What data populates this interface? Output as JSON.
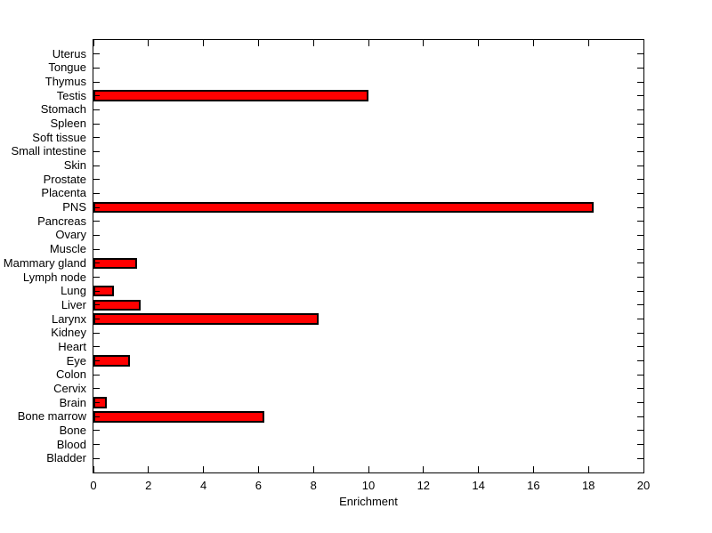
{
  "chart_data": {
    "type": "bar",
    "orientation": "horizontal",
    "title": "",
    "xlabel": "Enrichment",
    "ylabel": "",
    "categories": [
      "Uterus",
      "Tongue",
      "Thymus",
      "Testis",
      "Stomach",
      "Spleen",
      "Soft tissue",
      "Small intestine",
      "Skin",
      "Prostate",
      "Placenta",
      "PNS",
      "Pancreas",
      "Ovary",
      "Muscle",
      "Mammary gland",
      "Lymph node",
      "Lung",
      "Liver",
      "Larynx",
      "Kidney",
      "Heart",
      "Eye",
      "Colon",
      "Cervix",
      "Brain",
      "Bone marrow",
      "Bone",
      "Blood",
      "Bladder"
    ],
    "values": [
      0,
      0,
      0,
      10,
      0,
      0,
      0,
      0,
      0,
      0,
      0,
      18.2,
      0,
      0,
      0,
      1.6,
      0,
      0.75,
      1.7,
      8.2,
      0,
      0,
      1.33,
      0,
      0,
      0.5,
      6.2,
      0,
      0,
      0
    ],
    "xlim": [
      0,
      20
    ],
    "xticks": [
      0,
      2,
      4,
      6,
      8,
      10,
      12,
      14,
      16,
      18,
      20
    ],
    "grid": false,
    "legend": null,
    "bar_color": "#ff0000",
    "bar_edge_color": "#000000",
    "axis_color": "#000000",
    "background_color": "#ffffff"
  }
}
